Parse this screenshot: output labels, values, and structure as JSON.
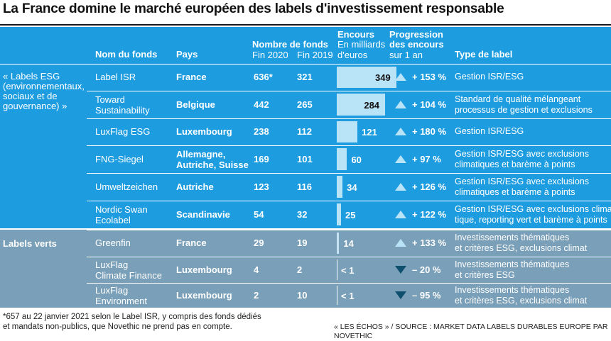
{
  "title": "La France domine le marché européen des labels d'investissement responsable",
  "headers": {
    "fund": "Nom du fonds",
    "country": "Pays",
    "count": "Nombre de fonds",
    "fin2020": "Fin 2020",
    "fin2019": "Fin 2019",
    "encours": "Encours",
    "encours_unit1": "En milliards",
    "encours_unit2": "d'euros",
    "prog1": "Progression",
    "prog2": "des encours",
    "prog3": "sur 1 an",
    "type": "Type de label"
  },
  "groups": {
    "esg_line1": "« Labels ESG",
    "esg_line2": "(environnementaux,",
    "esg_line3": "sociaux et de",
    "esg_line4": "gouvernance) »",
    "verts": "Labels verts"
  },
  "footer": {
    "note_line1": "*657 au 22 janvier 2021 selon le Label ISR, y compris des fonds dédiés",
    "note_line2": "et mandats non-publics, que Novethic ne prend pas en compte.",
    "source": "« LES ÉCHOS » / SOURCE : MARKET DATA LABELS DURABLES EUROPE PAR NOVETHIC"
  },
  "chart_data": {
    "type": "table",
    "title": "La France domine le marché européen des labels d'investissement responsable",
    "rows": [
      {
        "name1": "Label ISR",
        "name2": "",
        "country1": "France",
        "country2": "",
        "fin2020": "636*",
        "fin2019": "321",
        "encours": 349,
        "encours_label": "349",
        "direction": "up",
        "progression": "+ 153 %",
        "type1": "Gestion ISR/ESG",
        "type2": "",
        "group": "esg"
      },
      {
        "name1": "Toward",
        "name2": "Sustainability",
        "country1": "Belgique",
        "country2": "",
        "fin2020": "442",
        "fin2019": "265",
        "encours": 284,
        "encours_label": "284",
        "direction": "up",
        "progression": "+ 104 %",
        "type1": "Standard de qualité mélangeant",
        "type2": "processus de gestion et exclusions",
        "group": "esg"
      },
      {
        "name1": "LuxFlag ESG",
        "name2": "",
        "country1": "Luxembourg",
        "country2": "",
        "fin2020": "238",
        "fin2019": "112",
        "encours": 121,
        "encours_label": "121",
        "direction": "up",
        "progression": "+ 180 %",
        "type1": "Gestion ISR/ESG",
        "type2": "",
        "group": "esg"
      },
      {
        "name1": "FNG-Siegel",
        "name2": "",
        "country1": "Allemagne,",
        "country2": "Autriche, Suisse",
        "fin2020": "169",
        "fin2019": "101",
        "encours": 60,
        "encours_label": "60",
        "direction": "up",
        "progression": "+ 97 %",
        "type1": "Gestion ISR/ESG avec exclusions",
        "type2": "climatiques et barème à points",
        "group": "esg"
      },
      {
        "name1": "Umweltzeichen",
        "name2": "",
        "country1": "Autriche",
        "country2": "",
        "fin2020": "123",
        "fin2019": "116",
        "encours": 34,
        "encours_label": "34",
        "direction": "up",
        "progression": "+ 126 %",
        "type1": "Gestion ISR/ESG avec exclusions",
        "type2": "climatiques et barème à points",
        "group": "esg"
      },
      {
        "name1": "Nordic Swan",
        "name2": "Ecolabel",
        "country1": "Scandinavie",
        "country2": "",
        "fin2020": "54",
        "fin2019": "32",
        "encours": 25,
        "encours_label": "25",
        "direction": "up",
        "progression": "+ 122 %",
        "type1": "Gestion ISR/ESG avec exclusions clima-",
        "type2": "tique, reporting vert et barème à points",
        "group": "esg"
      },
      {
        "name1": "Greenfin",
        "name2": "",
        "country1": "France",
        "country2": "",
        "fin2020": "29",
        "fin2019": "19",
        "encours": 14,
        "encours_label": "14",
        "direction": "up",
        "progression": "+ 133 %",
        "type1": "Investissements thématiques",
        "type2": "et critères ESG, exclusions climat",
        "group": "verts"
      },
      {
        "name1": "LuxFlag",
        "name2": "Climate Finance",
        "country1": "Luxembourg",
        "country2": "",
        "fin2020": "4",
        "fin2019": "2",
        "encours": 0,
        "encours_label": "< 1",
        "direction": "down",
        "progression": "– 20 %",
        "type1": "Investissements thématiques",
        "type2": "et critères ESG",
        "group": "verts"
      },
      {
        "name1": "LuxFlag",
        "name2": "Environment",
        "country1": "Luxembourg",
        "country2": "",
        "fin2020": "2",
        "fin2019": "10",
        "encours": 0,
        "encours_label": "< 1",
        "direction": "down",
        "progression": "– 95 %",
        "type1": "Investissements thématiques",
        "type2": "et critères ESG, exclusions climat",
        "group": "verts"
      }
    ]
  }
}
